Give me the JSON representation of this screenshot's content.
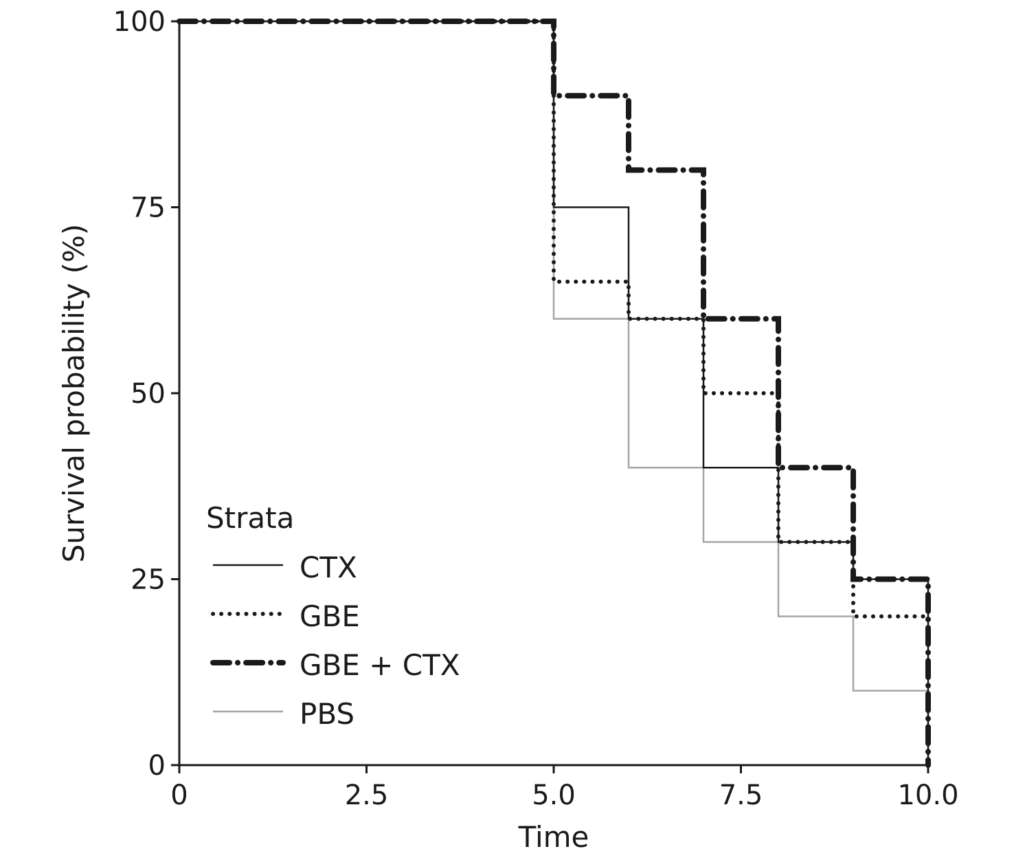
{
  "chart_data": {
    "type": "line",
    "step": true,
    "xlabel": "Time",
    "ylabel": "Survival probability (%)",
    "xlim": [
      0,
      10
    ],
    "ylim": [
      0,
      100
    ],
    "x_ticks": [
      "0",
      "2.5",
      "5.0",
      "7.5",
      "10.0"
    ],
    "y_ticks": [
      "0",
      "25",
      "50",
      "75",
      "100"
    ],
    "grid": false,
    "legend": {
      "title": "Strata",
      "position": "bottom-left"
    },
    "series": [
      {
        "name": "CTX",
        "style": "solid",
        "color": "#1a1a1a",
        "points": [
          [
            0,
            100
          ],
          [
            5,
            100
          ],
          [
            5,
            75
          ],
          [
            6,
            75
          ],
          [
            6,
            60
          ],
          [
            7,
            60
          ],
          [
            7,
            40
          ],
          [
            8,
            40
          ],
          [
            8,
            30
          ],
          [
            9,
            30
          ],
          [
            9,
            25
          ],
          [
            10,
            25
          ],
          [
            10,
            0
          ]
        ]
      },
      {
        "name": "GBE",
        "style": "dotted",
        "color": "#1a1a1a",
        "points": [
          [
            0,
            100
          ],
          [
            5,
            100
          ],
          [
            5,
            65
          ],
          [
            6,
            65
          ],
          [
            6,
            60
          ],
          [
            7,
            60
          ],
          [
            7,
            50
          ],
          [
            8,
            50
          ],
          [
            8,
            30
          ],
          [
            9,
            30
          ],
          [
            9,
            20
          ],
          [
            10,
            20
          ],
          [
            10,
            0
          ]
        ]
      },
      {
        "name": "GBE + CTX",
        "style": "dashdot",
        "color": "#1a1a1a",
        "points": [
          [
            0,
            100
          ],
          [
            5,
            100
          ],
          [
            5,
            90
          ],
          [
            6,
            90
          ],
          [
            6,
            80
          ],
          [
            7,
            80
          ],
          [
            7,
            60
          ],
          [
            8,
            60
          ],
          [
            8,
            40
          ],
          [
            9,
            40
          ],
          [
            9,
            25
          ],
          [
            10,
            25
          ],
          [
            10,
            0
          ]
        ]
      },
      {
        "name": "PBS",
        "style": "solid",
        "color": "#a6a6a6",
        "points": [
          [
            0,
            100
          ],
          [
            5,
            100
          ],
          [
            5,
            60
          ],
          [
            6,
            60
          ],
          [
            6,
            40
          ],
          [
            7,
            40
          ],
          [
            7,
            30
          ],
          [
            8,
            30
          ],
          [
            8,
            20
          ],
          [
            9,
            20
          ],
          [
            9,
            10
          ],
          [
            10,
            10
          ],
          [
            10,
            0
          ]
        ]
      }
    ]
  }
}
